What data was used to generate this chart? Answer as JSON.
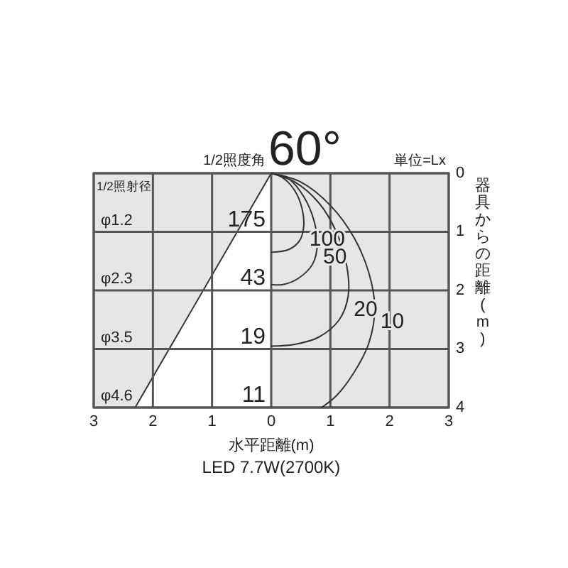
{
  "chart_data": {
    "type": "line",
    "title": "60°",
    "subtitle": "1/2照度角",
    "xlabel": "水平距離(m)",
    "ylabel": "器具からの距離(m)",
    "xlim": [
      -3,
      3
    ],
    "ylim": [
      4,
      0
    ],
    "xticks": [
      {
        "value": -3,
        "label": "3"
      },
      {
        "value": -2,
        "label": "2"
      },
      {
        "value": -1,
        "label": "1"
      },
      0,
      1,
      2,
      3
    ],
    "yticks": [
      0,
      1,
      2,
      3,
      4
    ],
    "grid": true,
    "marker": "none",
    "line_style": "solid",
    "series": [
      {
        "type": "area",
        "color": "#333333",
        "x": [
          0,
          -2.3
        ],
        "values": [
          0,
          4
        ]
      },
      {
        "name": "100",
        "color": "#333333",
        "x": [
          0,
          0.2,
          0.4,
          0.52,
          0.55,
          0.48,
          0.3,
          0
        ],
        "values": [
          0,
          0.08,
          0.3,
          0.6,
          0.9,
          1.15,
          1.3,
          1.35
        ]
      },
      {
        "name": "50",
        "color": "#333333",
        "x": [
          0,
          0.3,
          0.55,
          0.72,
          0.78,
          0.7,
          0.45,
          0.2,
          0
        ],
        "values": [
          0,
          0.1,
          0.4,
          0.8,
          1.2,
          1.55,
          1.8,
          1.9,
          1.9
        ]
      },
      {
        "name": "20",
        "color": "#333333",
        "x": [
          0,
          0.4,
          0.8,
          1.1,
          1.28,
          1.3,
          1.15,
          0.8,
          0.4,
          0
        ],
        "values": [
          0,
          0.15,
          0.5,
          1.0,
          1.6,
          2.1,
          2.5,
          2.8,
          2.92,
          2.95
        ]
      },
      {
        "name": "10",
        "color": "#333333",
        "x": [
          0,
          0.5,
          1.0,
          1.4,
          1.65,
          1.75,
          1.65,
          1.4,
          1.1,
          0.85
        ],
        "values": [
          0,
          0.15,
          0.55,
          1.1,
          1.7,
          2.3,
          2.9,
          3.4,
          3.8,
          4
        ]
      }
    ],
    "annotations": [
      "単位=Lx",
      "1/2照射径",
      "LED 7.7W(2700K)",
      "175",
      "43",
      "19",
      "11",
      "φ1.2",
      "φ2.3",
      "φ3.5",
      "φ4.6"
    ]
  }
}
